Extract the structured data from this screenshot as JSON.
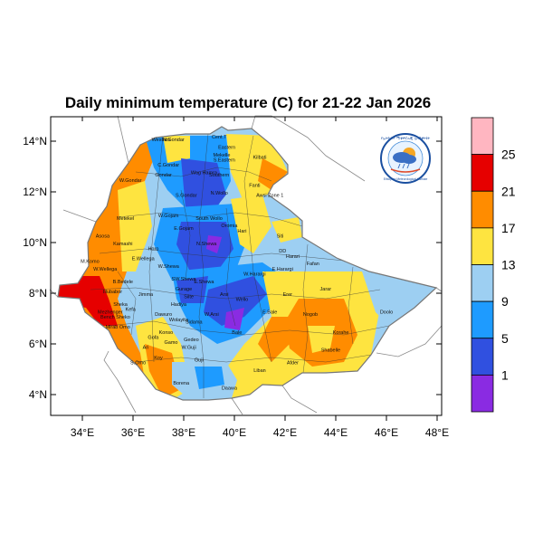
{
  "title": "Daily minimum temperature (C) for 21-22 Jan 2026",
  "map": {
    "lon_ticks": [
      "34°E",
      "36°E",
      "38°E",
      "40°E",
      "42°E",
      "44°E",
      "46°E",
      "48°E"
    ],
    "lat_ticks": [
      "14°N",
      "12°N",
      "10°N",
      "8°N",
      "6°N",
      "4°N"
    ],
    "lon_range": [
      32.8,
      48.3
    ],
    "lat_range": [
      3.2,
      15.0
    ],
    "zone_labels": [
      {
        "text": "Western",
        "lon": 37.1,
        "lat": 14.0
      },
      {
        "text": "N.Gondar",
        "lon": 37.6,
        "lat": 14.0
      },
      {
        "text": "Cent.T",
        "lon": 39.4,
        "lat": 14.1
      },
      {
        "text": "Eastern",
        "lon": 39.7,
        "lat": 13.7
      },
      {
        "text": "Mekelle",
        "lon": 39.5,
        "lat": 13.4
      },
      {
        "text": "S.Eastern",
        "lon": 39.6,
        "lat": 13.2
      },
      {
        "text": "Kilbati",
        "lon": 41.0,
        "lat": 13.3
      },
      {
        "text": "C.Gondar",
        "lon": 37.4,
        "lat": 13.0
      },
      {
        "text": "Wag Hamra",
        "lon": 38.8,
        "lat": 12.7
      },
      {
        "text": "Southern",
        "lon": 39.4,
        "lat": 12.6
      },
      {
        "text": "W.Gondar",
        "lon": 35.9,
        "lat": 12.4
      },
      {
        "text": "Gondar",
        "lon": 37.2,
        "lat": 12.6
      },
      {
        "text": "Fanti",
        "lon": 40.8,
        "lat": 12.2
      },
      {
        "text": "S.Gondar",
        "lon": 38.1,
        "lat": 11.8
      },
      {
        "text": "N.Wollo",
        "lon": 39.4,
        "lat": 11.9
      },
      {
        "text": "Awsi Zone 1",
        "lon": 41.4,
        "lat": 11.8
      },
      {
        "text": "Metekel",
        "lon": 35.7,
        "lat": 10.9
      },
      {
        "text": "W.Gojam",
        "lon": 37.4,
        "lat": 11.0
      },
      {
        "text": "South Wollo",
        "lon": 39.0,
        "lat": 10.9
      },
      {
        "text": "Oromia",
        "lon": 39.8,
        "lat": 10.6
      },
      {
        "text": "Hari",
        "lon": 40.3,
        "lat": 10.4
      },
      {
        "text": "E.Gojam",
        "lon": 38.0,
        "lat": 10.5
      },
      {
        "text": "Siti",
        "lon": 41.8,
        "lat": 10.2
      },
      {
        "text": "Kamashi",
        "lon": 35.6,
        "lat": 9.9
      },
      {
        "text": "Asosa",
        "lon": 34.8,
        "lat": 10.2
      },
      {
        "text": "N.Shewa",
        "lon": 38.9,
        "lat": 9.9
      },
      {
        "text": "Horo",
        "lon": 36.8,
        "lat": 9.7
      },
      {
        "text": "E.Wellega",
        "lon": 36.4,
        "lat": 9.3
      },
      {
        "text": "DD",
        "lon": 41.9,
        "lat": 9.6
      },
      {
        "text": "Harari",
        "lon": 42.3,
        "lat": 9.4
      },
      {
        "text": "Fafan",
        "lon": 43.1,
        "lat": 9.1
      },
      {
        "text": "M.Komo",
        "lon": 34.3,
        "lat": 9.2
      },
      {
        "text": "W.Wellega",
        "lon": 34.9,
        "lat": 8.9
      },
      {
        "text": "W.Shewa",
        "lon": 37.4,
        "lat": 9.0
      },
      {
        "text": "E.Harargi",
        "lon": 41.9,
        "lat": 8.9
      },
      {
        "text": "W.Harargi",
        "lon": 40.8,
        "lat": 8.7
      },
      {
        "text": "B.Bedele",
        "lon": 35.6,
        "lat": 8.4
      },
      {
        "text": "SW.Shewa",
        "lon": 38.0,
        "lat": 8.5
      },
      {
        "text": "E.Shewa",
        "lon": 38.8,
        "lat": 8.4
      },
      {
        "text": "Illubabor",
        "lon": 35.2,
        "lat": 8.0
      },
      {
        "text": "Jimma",
        "lon": 36.5,
        "lat": 7.9
      },
      {
        "text": "Gurage",
        "lon": 38.0,
        "lat": 8.1
      },
      {
        "text": "Arsi",
        "lon": 39.6,
        "lat": 7.9
      },
      {
        "text": "Erer",
        "lon": 42.1,
        "lat": 7.9
      },
      {
        "text": "Jarar",
        "lon": 43.6,
        "lat": 8.1
      },
      {
        "text": "Silte",
        "lon": 38.2,
        "lat": 7.8
      },
      {
        "text": "Hadiya",
        "lon": 37.8,
        "lat": 7.5
      },
      {
        "text": "Mezhenger",
        "lon": 35.1,
        "lat": 7.2
      },
      {
        "text": "Kefa",
        "lon": 35.9,
        "lat": 7.3
      },
      {
        "text": "Sheka",
        "lon": 35.5,
        "lat": 7.5
      },
      {
        "text": "Sidama",
        "lon": 38.4,
        "lat": 6.8
      },
      {
        "text": "W.Arsi",
        "lon": 39.1,
        "lat": 7.1
      },
      {
        "text": "Bench Sheko",
        "lon": 35.3,
        "lat": 7.0
      },
      {
        "text": "Dawuro",
        "lon": 37.2,
        "lat": 7.1
      },
      {
        "text": "Wolayita",
        "lon": 37.8,
        "lat": 6.9
      },
      {
        "text": "E.Bale",
        "lon": 41.4,
        "lat": 7.2
      },
      {
        "text": "Nogob",
        "lon": 43.0,
        "lat": 7.1
      },
      {
        "text": "Doolo",
        "lon": 46.0,
        "lat": 7.2
      },
      {
        "text": "Mirab Omo",
        "lon": 35.4,
        "lat": 6.6
      },
      {
        "text": "Konso",
        "lon": 37.3,
        "lat": 6.4
      },
      {
        "text": "Gofa",
        "lon": 36.8,
        "lat": 6.2
      },
      {
        "text": "Gamo",
        "lon": 37.5,
        "lat": 6.0
      },
      {
        "text": "Gedeo",
        "lon": 38.3,
        "lat": 6.1
      },
      {
        "text": "Bale",
        "lon": 40.1,
        "lat": 6.4
      },
      {
        "text": "Korahe",
        "lon": 44.2,
        "lat": 6.4
      },
      {
        "text": "Shabelle",
        "lon": 43.8,
        "lat": 5.7
      },
      {
        "text": "W.Guji",
        "lon": 38.2,
        "lat": 5.8
      },
      {
        "text": "Guji",
        "lon": 38.6,
        "lat": 5.3
      },
      {
        "text": "S.Omo",
        "lon": 36.2,
        "lat": 5.2
      },
      {
        "text": "Ari",
        "lon": 36.5,
        "lat": 5.8
      },
      {
        "text": "Koy",
        "lon": 37.0,
        "lat": 5.4
      },
      {
        "text": "Afder",
        "lon": 42.3,
        "lat": 5.2
      },
      {
        "text": "Liban",
        "lon": 41.0,
        "lat": 4.9
      },
      {
        "text": "Borena",
        "lon": 37.9,
        "lat": 4.4
      },
      {
        "text": "Daawa",
        "lon": 39.8,
        "lat": 4.2
      },
      {
        "text": "Wello",
        "lon": 40.3,
        "lat": 7.7
      }
    ]
  },
  "chart_data": {
    "type": "heatmap",
    "title": "Daily minimum temperature (C) for 21-22 Jan 2026",
    "xlabel": "",
    "ylabel": "",
    "colorbar_labels": [
      "1",
      "5",
      "9",
      "13",
      "17",
      "21",
      "25"
    ],
    "colorbar_levels": [
      1,
      5,
      9,
      13,
      17,
      21,
      25
    ],
    "colorbar_colors": [
      "#8a2be2",
      "#3050e0",
      "#1e9bff",
      "#9dcff2",
      "#fee440",
      "#ff8c00",
      "#e60000",
      "#ffb6c1"
    ]
  },
  "logo": {
    "text_top": "የኢትዮጵያ ሚቲዎሮሎጂ ኢንስቲትዩት",
    "text_bottom": "Ethiopian Meteorological Institute"
  }
}
